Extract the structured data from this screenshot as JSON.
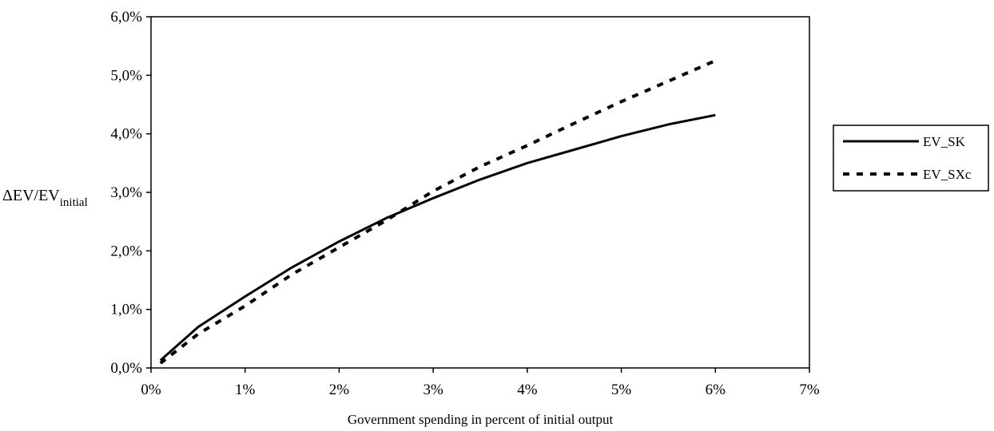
{
  "chart_data": {
    "type": "line",
    "xlabel": "Government spending in percent of initial output",
    "ylabel": {
      "main": "ΔEV/EV",
      "sub": "initial"
    },
    "xlim": [
      0,
      7
    ],
    "ylim": [
      0,
      6
    ],
    "x_ticks": [
      "0%",
      "1%",
      "2%",
      "3%",
      "4%",
      "5%",
      "6%",
      "7%"
    ],
    "y_ticks": [
      "0,0%",
      "1,0%",
      "2,0%",
      "3,0%",
      "4,0%",
      "5,0%",
      "6,0%"
    ],
    "grid": false,
    "legend_position": "right",
    "series": [
      {
        "name": "EV_SK",
        "style": "solid",
        "color": "#000000",
        "x": [
          0.1,
          0.5,
          1.0,
          1.5,
          2.0,
          2.5,
          3.0,
          3.5,
          4.0,
          4.5,
          5.0,
          5.5,
          6.0
        ],
        "y": [
          0.13,
          0.7,
          1.22,
          1.72,
          2.16,
          2.56,
          2.9,
          3.22,
          3.5,
          3.73,
          3.96,
          4.16,
          4.32
        ]
      },
      {
        "name": "EV_SXc",
        "style": "dashed",
        "color": "#000000",
        "x": [
          0.1,
          0.5,
          1.0,
          1.5,
          2.0,
          2.5,
          3.0,
          3.5,
          4.0,
          4.5,
          5.0,
          5.5,
          6.0
        ],
        "y": [
          0.08,
          0.58,
          1.06,
          1.6,
          2.06,
          2.52,
          3.02,
          3.44,
          3.8,
          4.18,
          4.55,
          4.9,
          5.25
        ]
      }
    ]
  }
}
